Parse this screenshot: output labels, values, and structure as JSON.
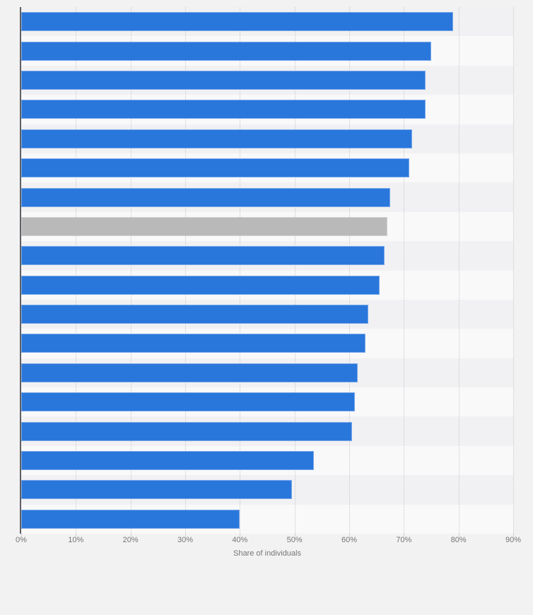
{
  "chart_data": {
    "type": "bar",
    "orientation": "horizontal",
    "title": "",
    "xlabel": "Share of individuals",
    "ylabel": "",
    "xlim": [
      0,
      90
    ],
    "x_tick_labels": [
      "0%",
      "10%",
      "20%",
      "30%",
      "40%",
      "50%",
      "60%",
      "70%",
      "80%",
      "90%"
    ],
    "grid": true,
    "legend": false,
    "category_labels_visible": false,
    "values": [
      79,
      75,
      74,
      74,
      71.5,
      71,
      67.5,
      67,
      66.5,
      65.5,
      63.5,
      63,
      61.5,
      61,
      60.5,
      53.5,
      49.5,
      40
    ],
    "highlighted_index": 7,
    "colors": {
      "bar": "#2a77dc",
      "highlighted_bar": "#b9b9ba",
      "band_dark": "#f1f1f3",
      "band_light": "#f9f9fa",
      "page_background": "#f2f2f3",
      "gridline": "#c9c9cb",
      "axis_line": "#5f5f63",
      "label_text": "#767676"
    }
  }
}
